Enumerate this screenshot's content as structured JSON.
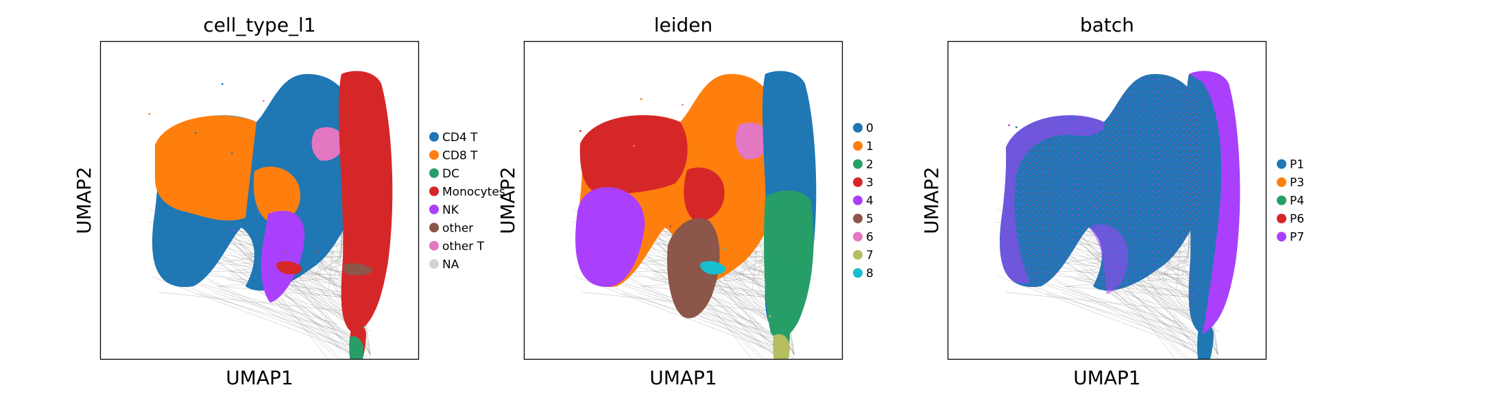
{
  "figure": {
    "background": "#ffffff"
  },
  "edge_color": "#7f7f7f",
  "chart_data": [
    {
      "type": "scatter",
      "title": "cell_type_l1",
      "xlabel": "UMAP1",
      "ylabel": "UMAP2",
      "grid": false,
      "legend": "right",
      "series": [
        {
          "name": "CD4 T",
          "color": "#1f77b4",
          "values": [
            [
              -3.2,
              4.2
            ],
            [
              -2.1,
              6.8
            ],
            [
              -1.7,
              3.1
            ],
            [
              -3.6,
              -0.4
            ]
          ]
        },
        {
          "name": "CD8 T",
          "color": "#ff7f0e",
          "values": [
            [
              -5.1,
              5.2
            ],
            [
              -1.4,
              3.4
            ]
          ]
        },
        {
          "name": "DC",
          "color": "#279e68",
          "values": [
            [
              3.7,
              -6.2
            ]
          ]
        },
        {
          "name": "Monocytes",
          "color": "#d62728",
          "values": [
            [
              3.2,
              5.0
            ],
            [
              3.4,
              1.2
            ],
            [
              3.1,
              -2.2
            ],
            [
              1.8,
              -2.2
            ]
          ]
        },
        {
          "name": "NK",
          "color": "#aa40fc",
          "values": [
            [
              -1.6,
              -1.0
            ]
          ]
        },
        {
          "name": "other",
          "color": "#8c564b",
          "values": [
            [
              0.5,
              -2.2
            ]
          ]
        },
        {
          "name": "other T",
          "color": "#e377c2",
          "values": [
            [
              -0.4,
              5.9
            ]
          ]
        },
        {
          "name": "NA",
          "color": "#d3d3d3",
          "values": []
        }
      ]
    },
    {
      "type": "scatter",
      "title": "leiden",
      "xlabel": "UMAP1",
      "ylabel": "UMAP2",
      "grid": false,
      "legend": "right",
      "series": [
        {
          "name": "0",
          "color": "#1f77b4",
          "values": [
            [
              3.1,
              5.6
            ]
          ]
        },
        {
          "name": "1",
          "color": "#ff7f0e",
          "values": [
            [
              -2.3,
              6.0
            ],
            [
              -2.6,
              3.5
            ]
          ]
        },
        {
          "name": "2",
          "color": "#279e68",
          "values": [
            [
              3.4,
              0.5
            ],
            [
              3.0,
              -3.0
            ]
          ]
        },
        {
          "name": "3",
          "color": "#d62728",
          "values": [
            [
              -4.8,
              4.3
            ],
            [
              -1.2,
              3.3
            ]
          ]
        },
        {
          "name": "4",
          "color": "#aa40fc",
          "values": [
            [
              -3.6,
              0.2
            ]
          ]
        },
        {
          "name": "5",
          "color": "#8c564b",
          "values": [
            [
              -1.1,
              -0.8
            ]
          ]
        },
        {
          "name": "6",
          "color": "#e377c2",
          "values": [
            [
              -0.6,
              5.7
            ]
          ]
        },
        {
          "name": "7",
          "color": "#b5bd61",
          "values": [
            [
              3.0,
              -5.6
            ]
          ]
        },
        {
          "name": "8",
          "color": "#17becf",
          "values": [
            [
              1.1,
              -2.0
            ]
          ]
        }
      ]
    },
    {
      "type": "scatter",
      "title": "batch",
      "xlabel": "UMAP1",
      "ylabel": "UMAP2",
      "grid": false,
      "legend": "right",
      "series": [
        {
          "name": "P1",
          "color": "#1f77b4",
          "values": [
            [
              -4.3,
              4.5
            ],
            [
              -2.0,
              5.0
            ],
            [
              -3.3,
              0.2
            ],
            [
              -1.3,
              0.0
            ],
            [
              3.1,
              4.0
            ],
            [
              3.4,
              -0.5
            ]
          ]
        },
        {
          "name": "P3",
          "color": "#ff7f0e",
          "values": []
        },
        {
          "name": "P4",
          "color": "#279e68",
          "values": []
        },
        {
          "name": "P6",
          "color": "#d62728",
          "values": []
        },
        {
          "name": "P7",
          "color": "#aa40fc",
          "values": [
            [
              -4.6,
              4.6
            ],
            [
              -1.1,
              0.3
            ],
            [
              3.7,
              2.0
            ],
            [
              3.0,
              -4.5
            ]
          ]
        }
      ]
    }
  ]
}
